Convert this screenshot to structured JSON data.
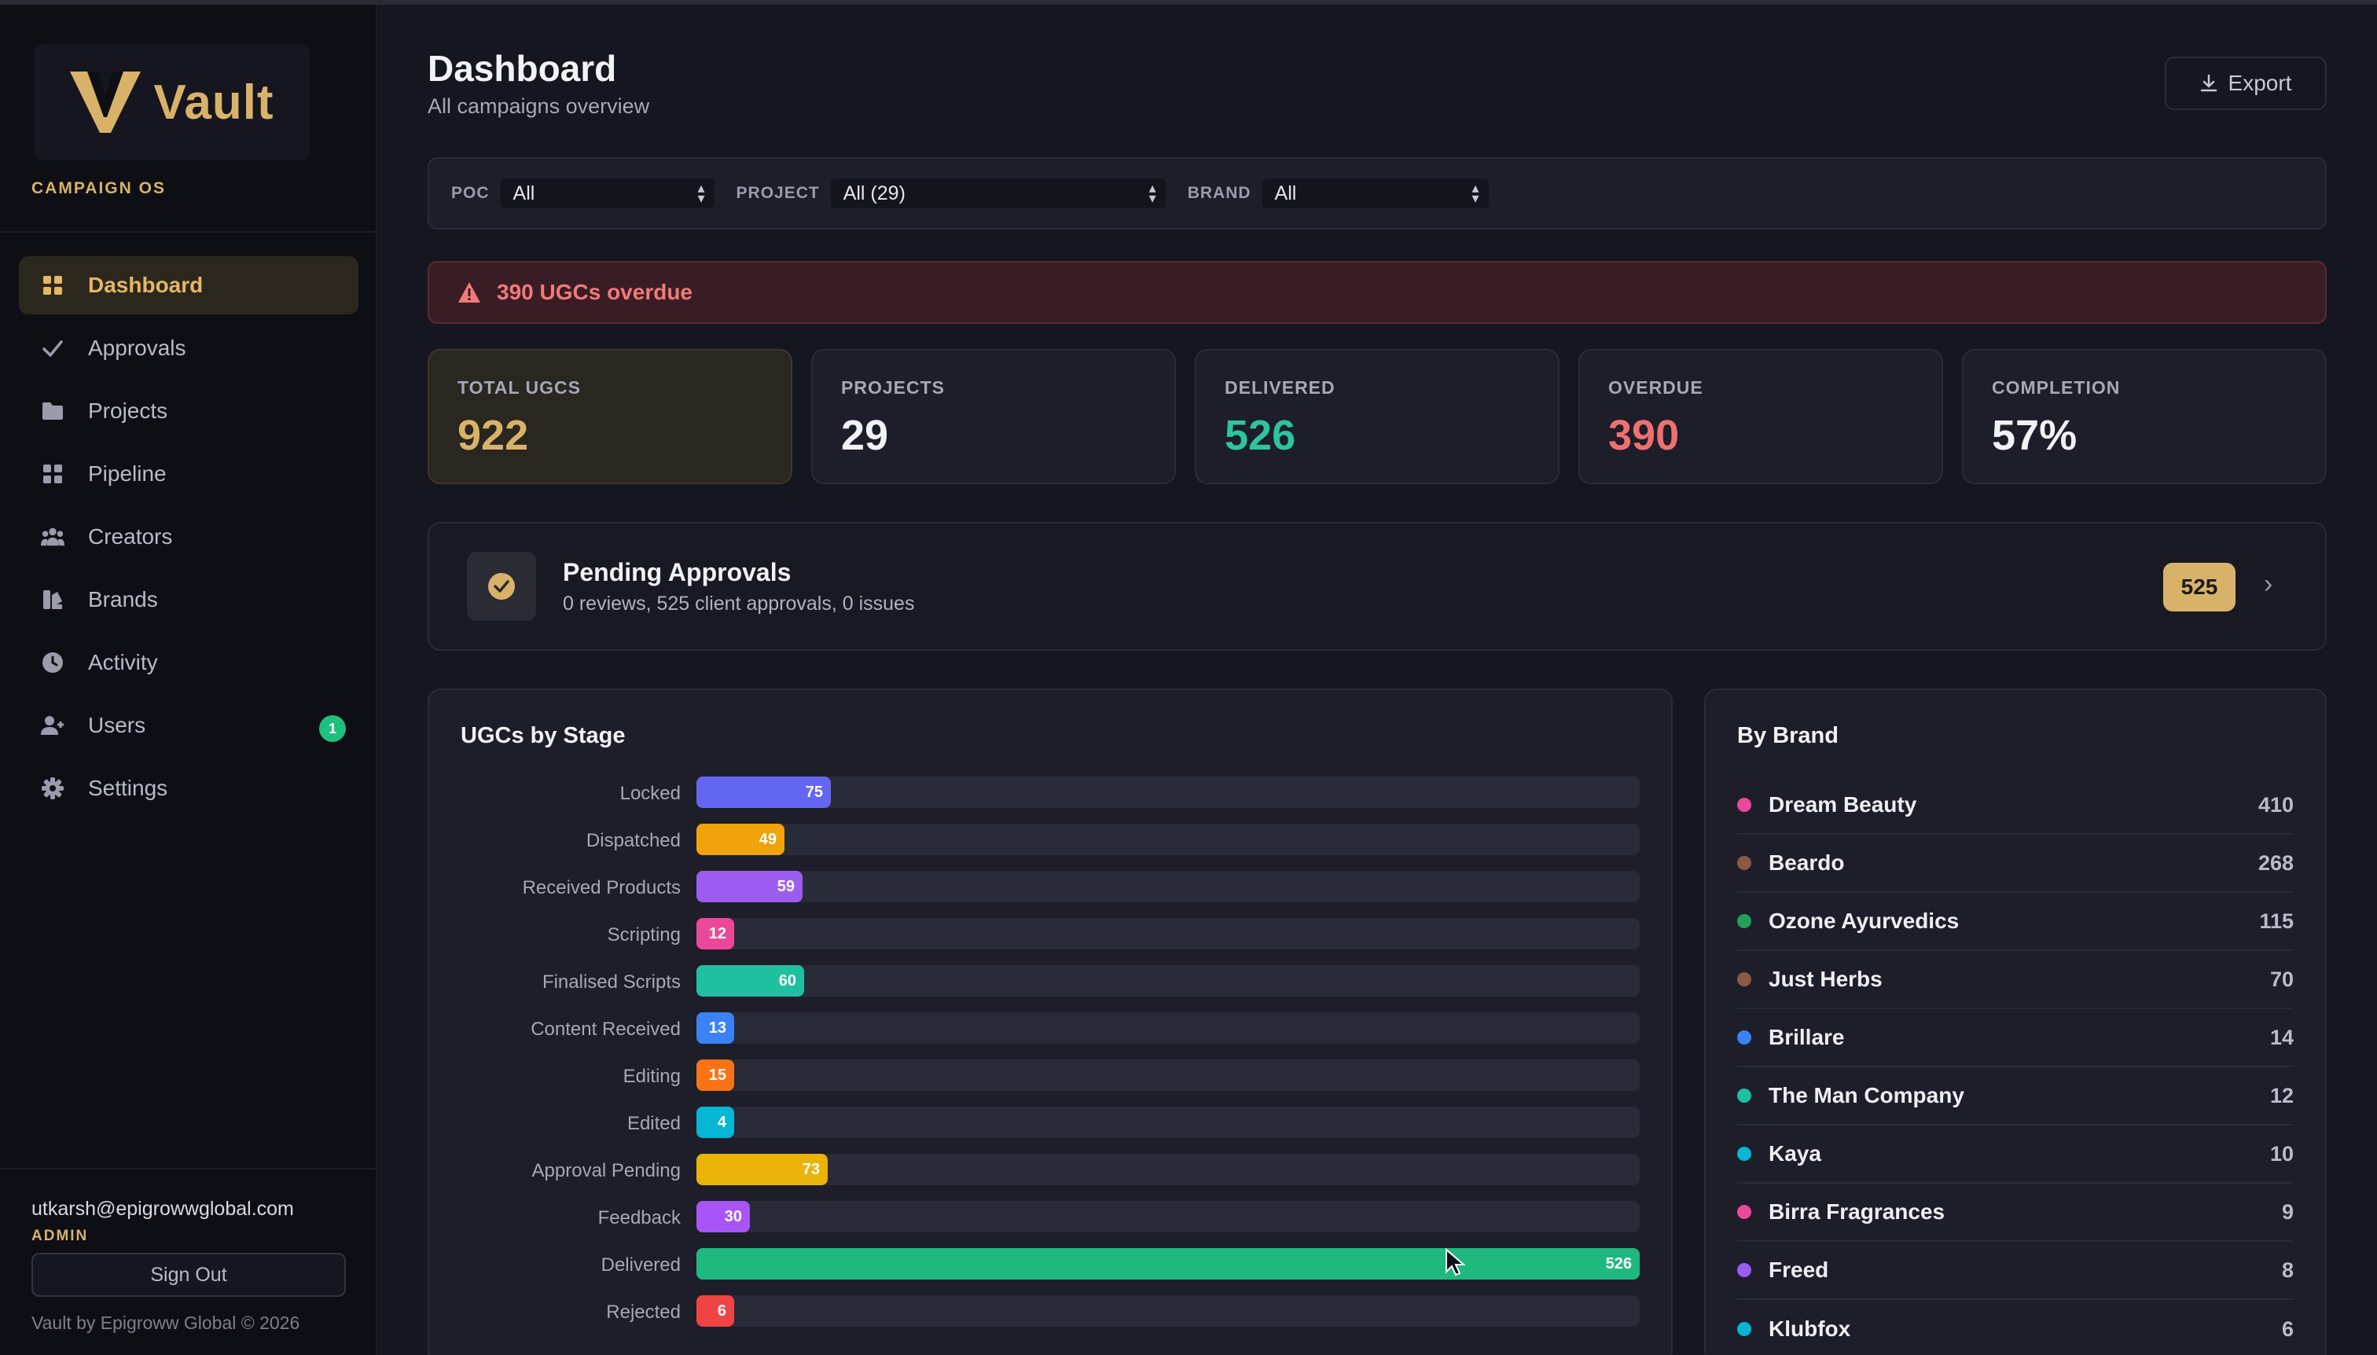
{
  "app": {
    "name": "Vault",
    "tagline": "CAMPAIGN OS",
    "footer": "Vault by Epigroww Global © 2026"
  },
  "sidebar": {
    "items": [
      {
        "label": "Dashboard",
        "icon": "grid-icon",
        "active": true
      },
      {
        "label": "Approvals",
        "icon": "check-icon"
      },
      {
        "label": "Projects",
        "icon": "folder-icon"
      },
      {
        "label": "Pipeline",
        "icon": "grid-icon"
      },
      {
        "label": "Creators",
        "icon": "users-icon"
      },
      {
        "label": "Brands",
        "icon": "brands-icon"
      },
      {
        "label": "Activity",
        "icon": "clock-icon"
      },
      {
        "label": "Users",
        "icon": "user-plus-icon",
        "badge": "1"
      },
      {
        "label": "Settings",
        "icon": "gear-icon"
      }
    ]
  },
  "user": {
    "email": "utkarsh@epigrowwglobal.com",
    "role": "ADMIN",
    "sign_out": "Sign Out"
  },
  "header": {
    "title": "Dashboard",
    "subtitle": "All campaigns overview",
    "export": "Export"
  },
  "filters": {
    "poc": {
      "label": "POC",
      "value": "All"
    },
    "project": {
      "label": "PROJECT",
      "value": "All (29)"
    },
    "brand": {
      "label": "BRAND",
      "value": "All"
    }
  },
  "alert": {
    "text": "390 UGCs overdue"
  },
  "stats": [
    {
      "label": "TOTAL UGCS",
      "value": "922",
      "color": "#d9b26a"
    },
    {
      "label": "PROJECTS",
      "value": "29",
      "color": "#f2f2f6"
    },
    {
      "label": "DELIVERED",
      "value": "526",
      "color": "#2ec4a0"
    },
    {
      "label": "OVERDUE",
      "value": "390",
      "color": "#f07070"
    },
    {
      "label": "COMPLETION",
      "value": "57%",
      "color": "#f2f2f6"
    }
  ],
  "approvals": {
    "title": "Pending Approvals",
    "subtitle": "0 reviews, 525 client approvals, 0 issues",
    "count": "525"
  },
  "stages_card": {
    "title": "UGCs by Stage"
  },
  "chart_data": {
    "type": "bar",
    "categories": [
      "Locked",
      "Dispatched",
      "Received Products",
      "Scripting",
      "Finalised Scripts",
      "Content Received",
      "Editing",
      "Edited",
      "Approval Pending",
      "Feedback",
      "Delivered",
      "Rejected"
    ],
    "values": [
      75,
      49,
      59,
      12,
      60,
      13,
      15,
      4,
      73,
      30,
      526,
      6
    ],
    "colors": [
      "#6366f1",
      "#f0a30a",
      "#9d5cf0",
      "#ec4899",
      "#1fc0a0",
      "#3b82f6",
      "#f97316",
      "#06b6d4",
      "#eab308",
      "#a855f7",
      "#1fb87f",
      "#ef4444"
    ],
    "title": "UGCs by Stage",
    "xlim": [
      0,
      526
    ]
  },
  "brands_card": {
    "title": "By Brand",
    "items": [
      {
        "name": "Dream Beauty",
        "count": "410",
        "color": "#ec4899"
      },
      {
        "name": "Beardo",
        "count": "268",
        "color": "#8b5a44"
      },
      {
        "name": "Ozone Ayurvedics",
        "count": "115",
        "color": "#22a05a"
      },
      {
        "name": "Just Herbs",
        "count": "70",
        "color": "#8b5a44"
      },
      {
        "name": "Brillare",
        "count": "14",
        "color": "#3b82f6"
      },
      {
        "name": "The Man Company",
        "count": "12",
        "color": "#1fc0a0"
      },
      {
        "name": "Kaya",
        "count": "10",
        "color": "#06b6d4"
      },
      {
        "name": "Birra Fragrances",
        "count": "9",
        "color": "#ec4899"
      },
      {
        "name": "Freed",
        "count": "8",
        "color": "#9d5cf0"
      },
      {
        "name": "Klubfox",
        "count": "6",
        "color": "#06b6d4"
      }
    ]
  }
}
